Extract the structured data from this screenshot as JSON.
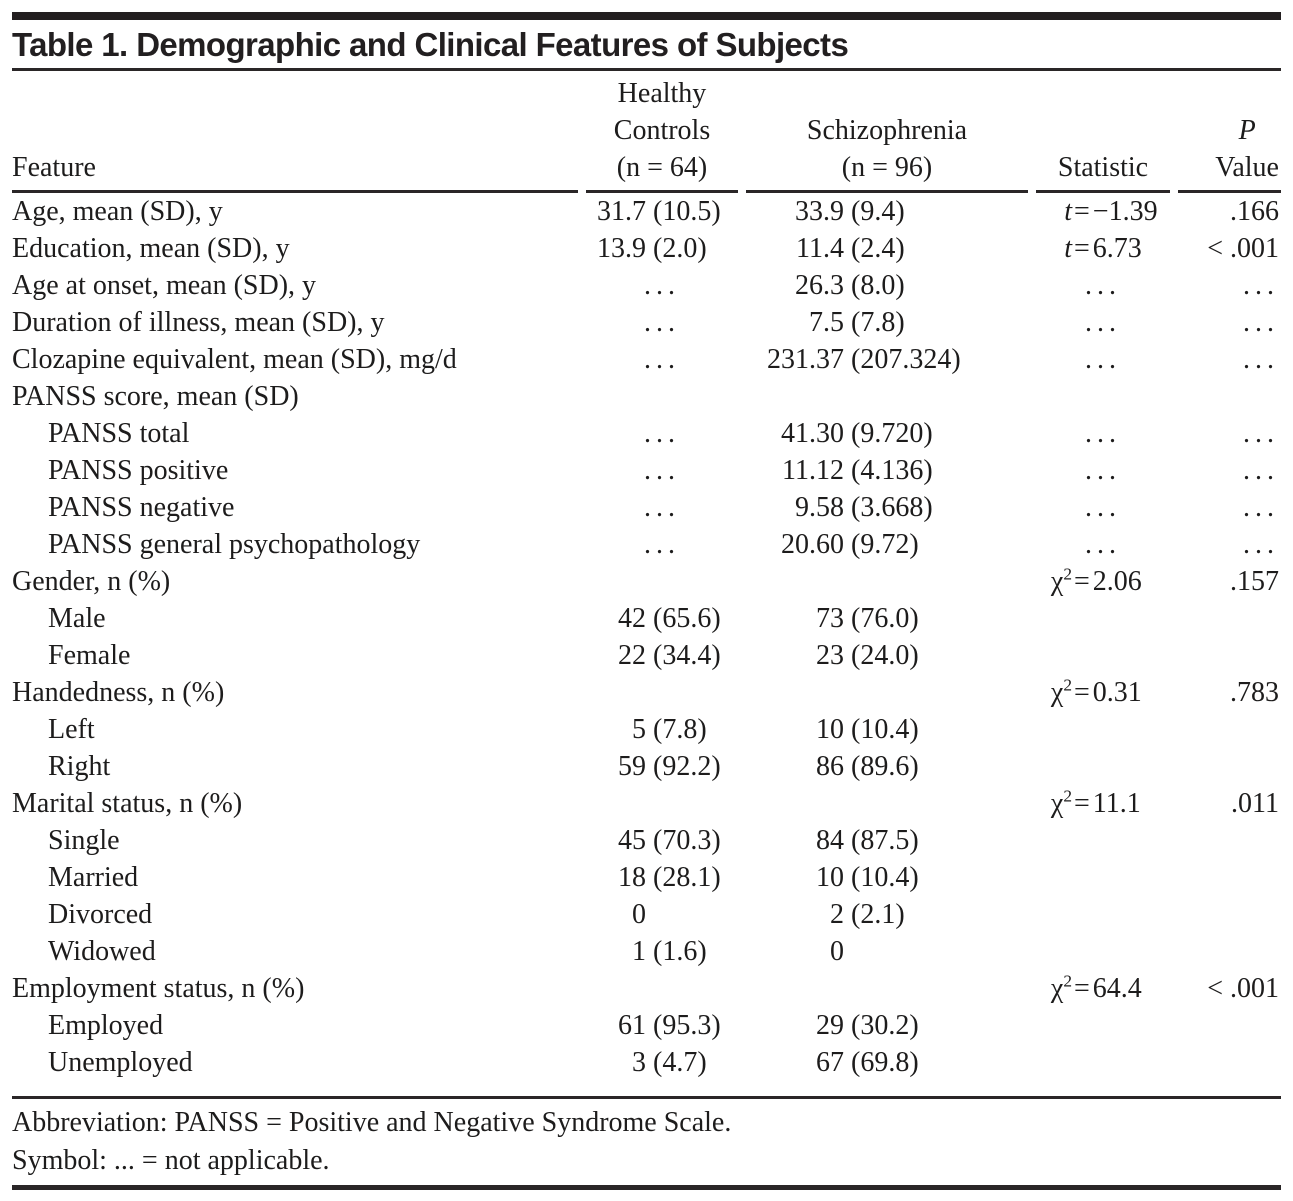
{
  "title": "Table 1. Demographic and Clinical Features of Subjects",
  "na_symbol": "...",
  "colors": {
    "rule": "#2a2627",
    "text": "#1d1c1c",
    "background": "#ffffff"
  },
  "columns": {
    "feature": "Feature",
    "healthy": [
      "Healthy",
      "Controls",
      "(n = 64)"
    ],
    "schizophrenia": [
      "Schizophrenia",
      "(n = 96)"
    ],
    "statistic": "Statistic",
    "p_line1": "P",
    "p_line2": "Value"
  },
  "rows": [
    {
      "label": "Age, mean (SD), y",
      "indent": 0,
      "hc": [
        "31.7",
        "(10.5)"
      ],
      "sz": [
        "33.9",
        "(9.4)"
      ],
      "stat": [
        "t",
        "−1.39"
      ],
      "p": ".166"
    },
    {
      "label": "Education, mean (SD), y",
      "indent": 0,
      "hc": [
        "13.9",
        "(2.0)"
      ],
      "sz": [
        "11.4",
        "(2.4)"
      ],
      "stat": [
        "t",
        "6.73"
      ],
      "p": "< .001"
    },
    {
      "label": "Age at onset, mean (SD), y",
      "indent": 0,
      "hc": "na",
      "sz": [
        "26.3",
        "(8.0)"
      ],
      "stat": "na",
      "p": "na"
    },
    {
      "label": "Duration of illness, mean (SD), y",
      "indent": 0,
      "hc": "na",
      "sz": [
        "7.5",
        "(7.8)"
      ],
      "stat": "na",
      "p": "na"
    },
    {
      "label": "Clozapine equivalent, mean (SD), mg/d",
      "indent": 0,
      "hc": "na",
      "sz": [
        "231.37",
        "(207.324)"
      ],
      "stat": "na",
      "p": "na"
    },
    {
      "label": "PANSS score, mean (SD)",
      "indent": 0,
      "hc": null,
      "sz": null,
      "stat": null,
      "p": null
    },
    {
      "label": "PANSS total",
      "indent": 1,
      "hc": "na",
      "sz": [
        "41.30",
        "(9.720)"
      ],
      "stat": "na",
      "p": "na"
    },
    {
      "label": "PANSS positive",
      "indent": 1,
      "hc": "na",
      "sz": [
        "11.12",
        "(4.136)"
      ],
      "stat": "na",
      "p": "na"
    },
    {
      "label": "PANSS negative",
      "indent": 1,
      "hc": "na",
      "sz": [
        "9.58",
        "(3.668)"
      ],
      "stat": "na",
      "p": "na"
    },
    {
      "label": "PANSS general psychopathology",
      "indent": 1,
      "hc": "na",
      "sz": [
        "20.60",
        "(9.72)"
      ],
      "stat": "na",
      "p": "na"
    },
    {
      "label": "Gender, n (%)",
      "indent": 0,
      "hc": null,
      "sz": null,
      "stat": [
        "chi2",
        "2.06"
      ],
      "p": ".157"
    },
    {
      "label": "Male",
      "indent": 1,
      "hc": [
        "42",
        "(65.6)"
      ],
      "sz": [
        "73",
        "(76.0)"
      ],
      "stat": null,
      "p": null
    },
    {
      "label": "Female",
      "indent": 1,
      "hc": [
        "22",
        "(34.4)"
      ],
      "sz": [
        "23",
        "(24.0)"
      ],
      "stat": null,
      "p": null
    },
    {
      "label": "Handedness, n (%)",
      "indent": 0,
      "hc": null,
      "sz": null,
      "stat": [
        "chi2",
        "0.31"
      ],
      "p": ".783"
    },
    {
      "label": "Left",
      "indent": 1,
      "hc": [
        "5",
        "(7.8)"
      ],
      "sz": [
        "10",
        "(10.4)"
      ],
      "stat": null,
      "p": null
    },
    {
      "label": "Right",
      "indent": 1,
      "hc": [
        "59",
        "(92.2)"
      ],
      "sz": [
        "86",
        "(89.6)"
      ],
      "stat": null,
      "p": null
    },
    {
      "label": "Marital status, n (%)",
      "indent": 0,
      "hc": null,
      "sz": null,
      "stat": [
        "chi2",
        "11.1"
      ],
      "p": ".011"
    },
    {
      "label": "Single",
      "indent": 1,
      "hc": [
        "45",
        "(70.3)"
      ],
      "sz": [
        "84",
        "(87.5)"
      ],
      "stat": null,
      "p": null
    },
    {
      "label": "Married",
      "indent": 1,
      "hc": [
        "18",
        "(28.1)"
      ],
      "sz": [
        "10",
        "(10.4)"
      ],
      "stat": null,
      "p": null
    },
    {
      "label": "Divorced",
      "indent": 1,
      "hc": [
        "0",
        ""
      ],
      "sz": [
        "2",
        "(2.1)"
      ],
      "stat": null,
      "p": null
    },
    {
      "label": "Widowed",
      "indent": 1,
      "hc": [
        "1",
        "(1.6)"
      ],
      "sz": [
        "0",
        ""
      ],
      "stat": null,
      "p": null
    },
    {
      "label": "Employment status, n (%)",
      "indent": 0,
      "hc": null,
      "sz": null,
      "stat": [
        "chi2",
        "64.4"
      ],
      "p": "< .001"
    },
    {
      "label": "Employed",
      "indent": 1,
      "hc": [
        "61",
        "(95.3)"
      ],
      "sz": [
        "29",
        "(30.2)"
      ],
      "stat": null,
      "p": null
    },
    {
      "label": "Unemployed",
      "indent": 1,
      "hc": [
        "3",
        "(4.7)"
      ],
      "sz": [
        "67",
        "(69.8)"
      ],
      "stat": null,
      "p": null
    }
  ],
  "footnotes": [
    "Abbreviation: PANSS = Positive and Negative Syndrome Scale.",
    "Symbol: ... = not applicable."
  ]
}
